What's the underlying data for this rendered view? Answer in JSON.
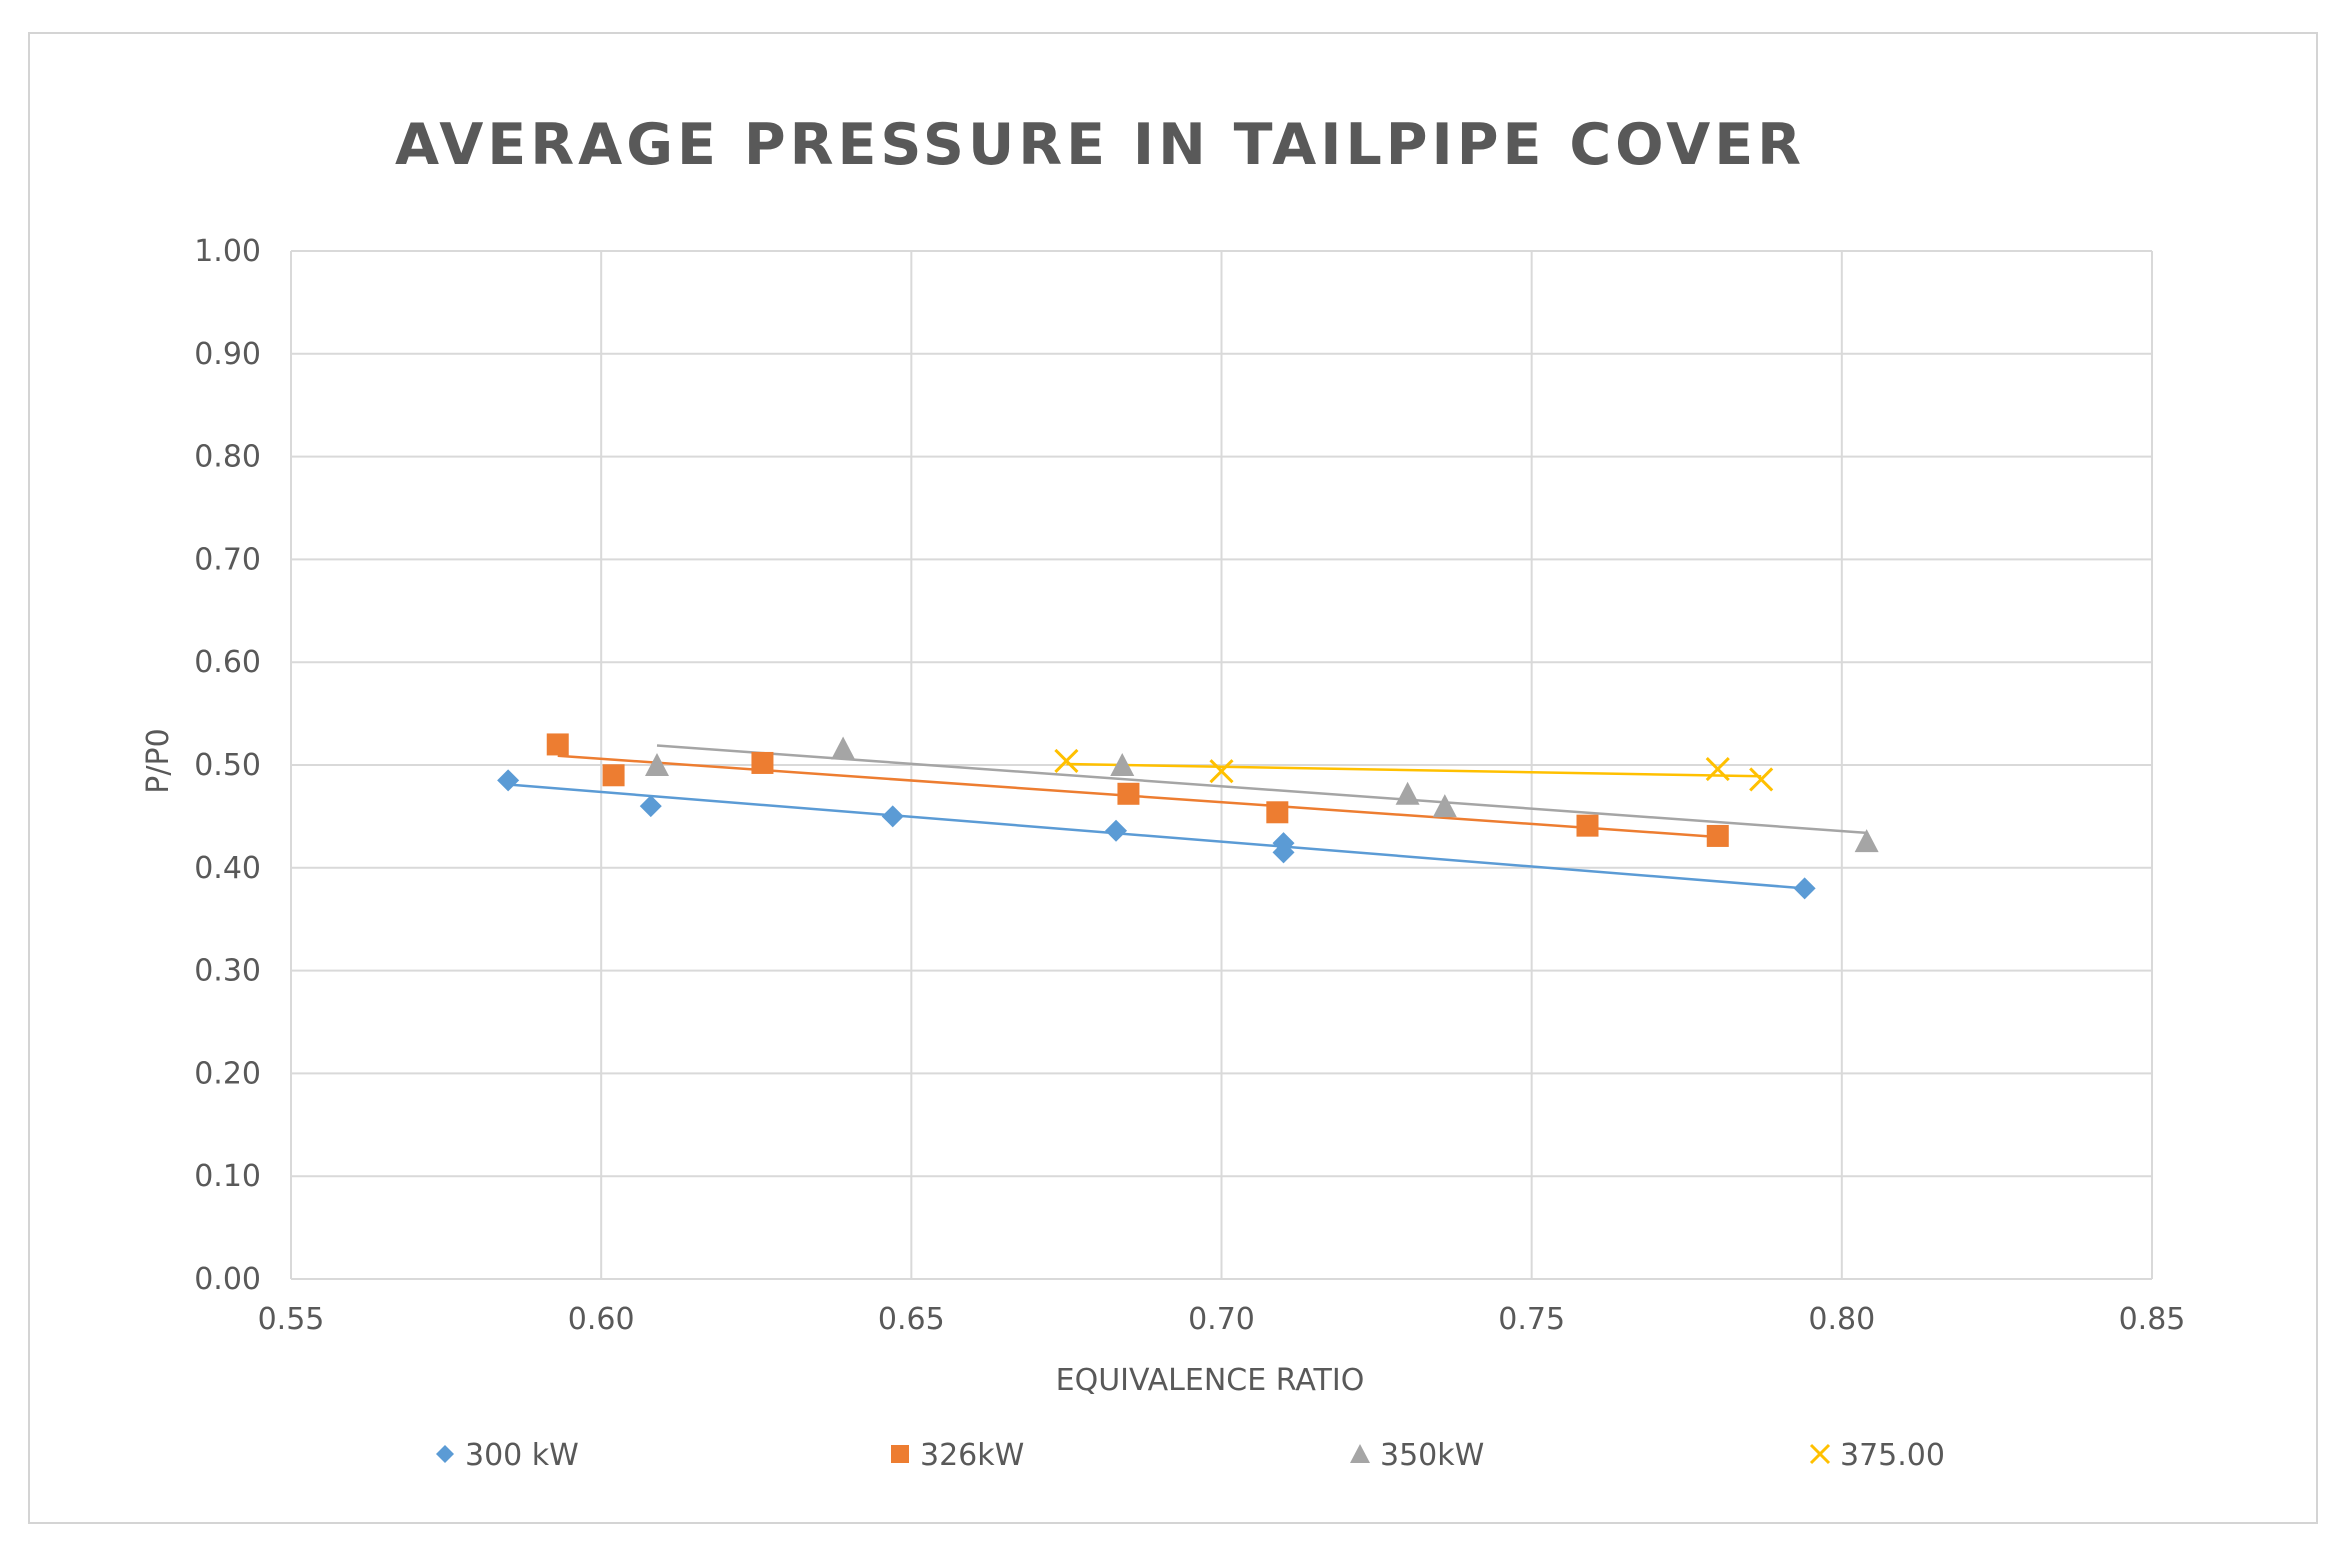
{
  "chart_data": {
    "type": "scatter",
    "title": "AVERAGE PRESSURE IN TAILPIPE COVER",
    "xlabel": "EQUIVALENCE RATIO",
    "ylabel": "P/P0",
    "xlim": [
      0.55,
      0.85
    ],
    "ylim": [
      0.0,
      1.0
    ],
    "xticks": [
      0.55,
      0.6,
      0.65,
      0.7,
      0.75,
      0.8,
      0.85
    ],
    "xtick_labels": [
      "0.55",
      "0.60",
      "0.65",
      "0.70",
      "0.75",
      "0.80",
      "0.85"
    ],
    "yticks": [
      0.0,
      0.1,
      0.2,
      0.3,
      0.4,
      0.5,
      0.6,
      0.7,
      0.8,
      0.9,
      1.0
    ],
    "ytick_labels": [
      "0.00",
      "0.10",
      "0.20",
      "0.30",
      "0.40",
      "0.50",
      "0.60",
      "0.70",
      "0.80",
      "0.90",
      "1.00"
    ],
    "grid": true,
    "legend_position": "bottom",
    "series": [
      {
        "name": "300 kW",
        "color": "#5b9bd5",
        "marker": "diamond",
        "x": [
          0.585,
          0.608,
          0.647,
          0.683,
          0.71,
          0.71,
          0.794
        ],
        "y": [
          0.485,
          0.46,
          0.45,
          0.436,
          0.424,
          0.415,
          0.38
        ],
        "trend": [
          [
            0.585,
            0.481
          ],
          [
            0.794,
            0.38
          ]
        ]
      },
      {
        "name": "326kW",
        "color": "#ed7d31",
        "marker": "square",
        "x": [
          0.593,
          0.602,
          0.626,
          0.685,
          0.709,
          0.759,
          0.78
        ],
        "y": [
          0.52,
          0.49,
          0.502,
          0.472,
          0.454,
          0.441,
          0.431
        ],
        "trend": [
          [
            0.593,
            0.509
          ],
          [
            0.78,
            0.43
          ]
        ]
      },
      {
        "name": "350kW",
        "color": "#a5a5a5",
        "marker": "triangle",
        "x": [
          0.609,
          0.639,
          0.684,
          0.73,
          0.736,
          0.804
        ],
        "y": [
          0.5,
          0.516,
          0.5,
          0.472,
          0.46,
          0.426
        ],
        "trend": [
          [
            0.609,
            0.519
          ],
          [
            0.804,
            0.434
          ]
        ]
      },
      {
        "name": "375.00",
        "color": "#ffc000",
        "marker": "x",
        "x": [
          0.675,
          0.7,
          0.78,
          0.787
        ],
        "y": [
          0.504,
          0.494,
          0.496,
          0.486
        ],
        "trend": [
          [
            0.675,
            0.501
          ],
          [
            0.787,
            0.489
          ]
        ]
      }
    ]
  }
}
